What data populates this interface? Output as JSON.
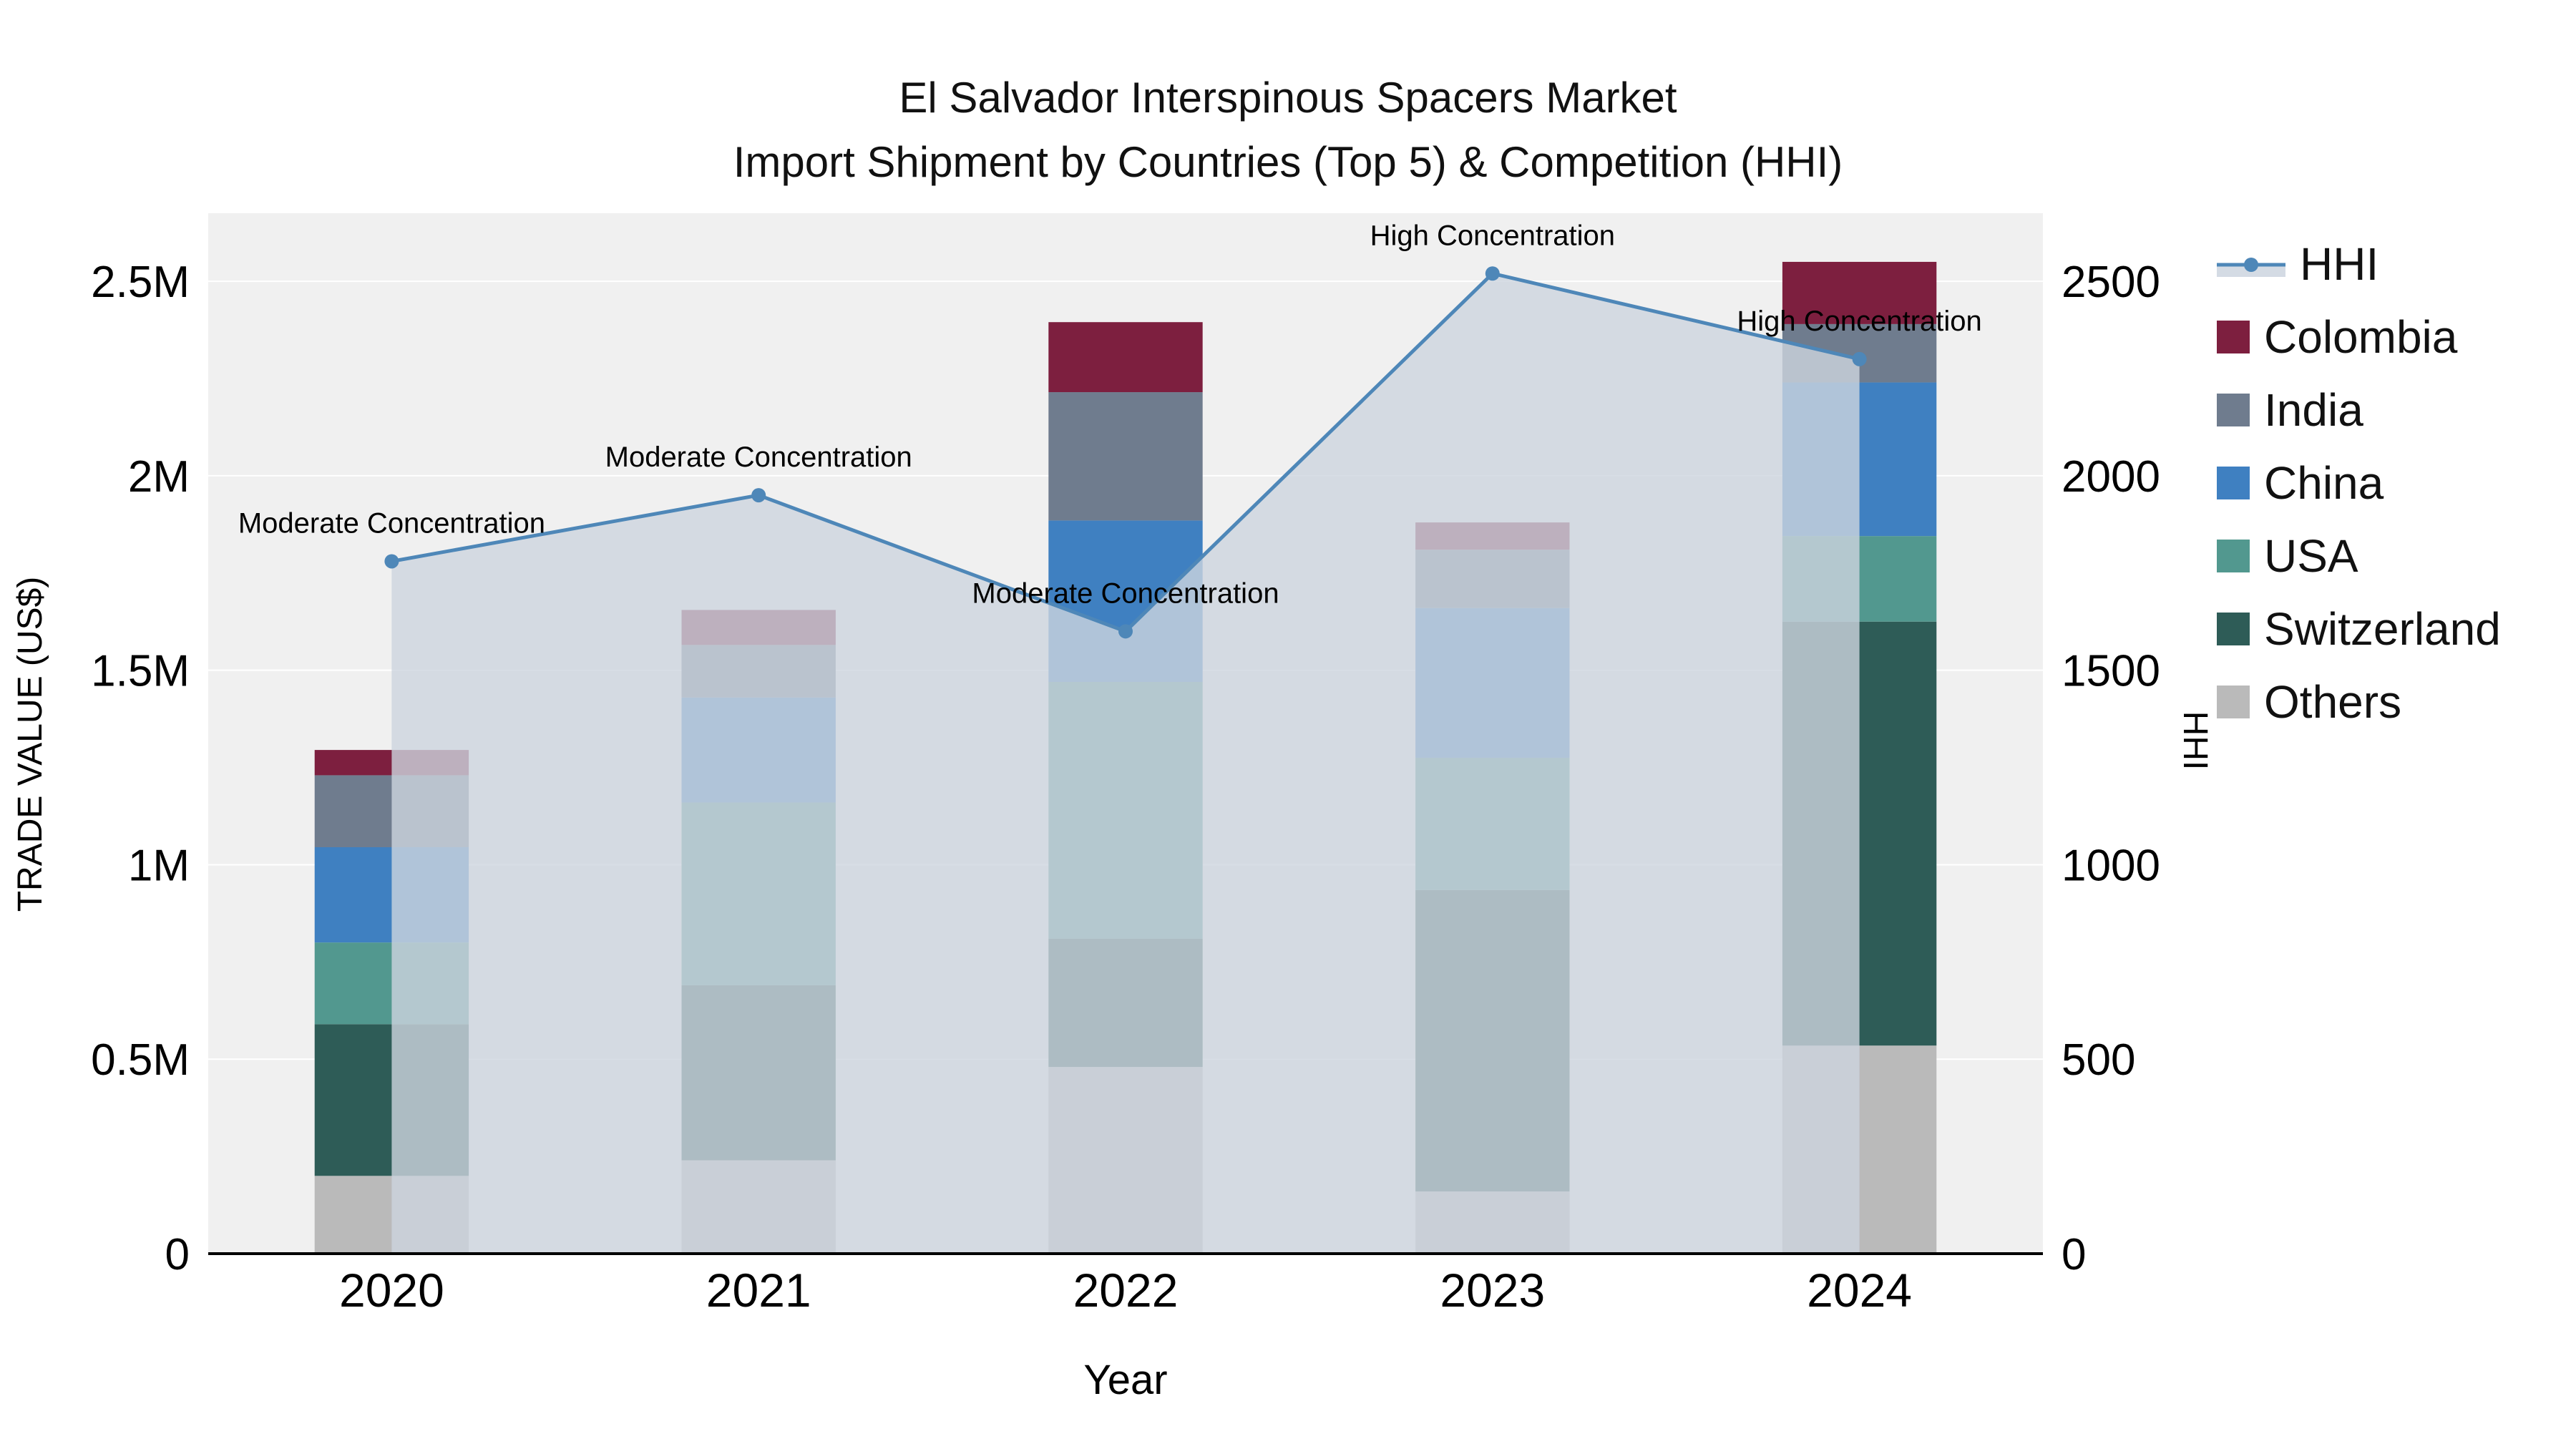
{
  "chart_data": {
    "type": "bar",
    "stacked": true,
    "title": "El Salvador Interspinous Spacers Market",
    "subtitle": "Import Shipment by Countries (Top 5) & Competition (HHI)",
    "xlabel": "Year",
    "ylabel_left": "TRADE VALUE (US$)",
    "ylabel_right": "HHI",
    "categories": [
      "2020",
      "2021",
      "2022",
      "2023",
      "2024"
    ],
    "series": [
      {
        "name": "Others",
        "color": "#bababa",
        "values": [
          200000,
          240000,
          480000,
          160000,
          535000
        ]
      },
      {
        "name": "Switzerland",
        "color": "#2e5c57",
        "values": [
          390000,
          450000,
          330000,
          775000,
          1090000
        ]
      },
      {
        "name": "USA",
        "color": "#52988f",
        "values": [
          210000,
          470000,
          660000,
          340000,
          220000
        ]
      },
      {
        "name": "China",
        "color": "#3f80c1",
        "values": [
          245000,
          270000,
          415000,
          385000,
          395000
        ]
      },
      {
        "name": "India",
        "color": "#6f7c8e",
        "values": [
          185000,
          135000,
          330000,
          150000,
          150000
        ]
      },
      {
        "name": "Colombia",
        "color": "#7d1f3f",
        "values": [
          65000,
          90000,
          180000,
          70000,
          160000
        ]
      }
    ],
    "hhi_line": {
      "name": "HHI",
      "color": "#4e87b8",
      "area_fill": "#cdd5df",
      "values": [
        1780,
        1950,
        1600,
        2520,
        2300
      ],
      "annotations": [
        "Moderate Concentration",
        "Moderate Concentration",
        "Moderate Concentration",
        "High Concentration",
        "High Concentration"
      ]
    },
    "left_axis": {
      "max": 2675000,
      "ticks": [
        0,
        500000,
        1000000,
        1500000,
        2000000,
        2500000
      ],
      "labels": [
        "0",
        "0.5M",
        "1M",
        "1.5M",
        "2M",
        "2.5M"
      ]
    },
    "right_axis": {
      "max": 2675,
      "ticks": [
        0,
        500,
        1000,
        1500,
        2000,
        2500
      ],
      "labels": [
        "0",
        "500",
        "1000",
        "1500",
        "2000",
        "2500"
      ]
    },
    "legend_position": "top-right-outside",
    "grid": true,
    "plot_background": "#f0f0f0"
  }
}
